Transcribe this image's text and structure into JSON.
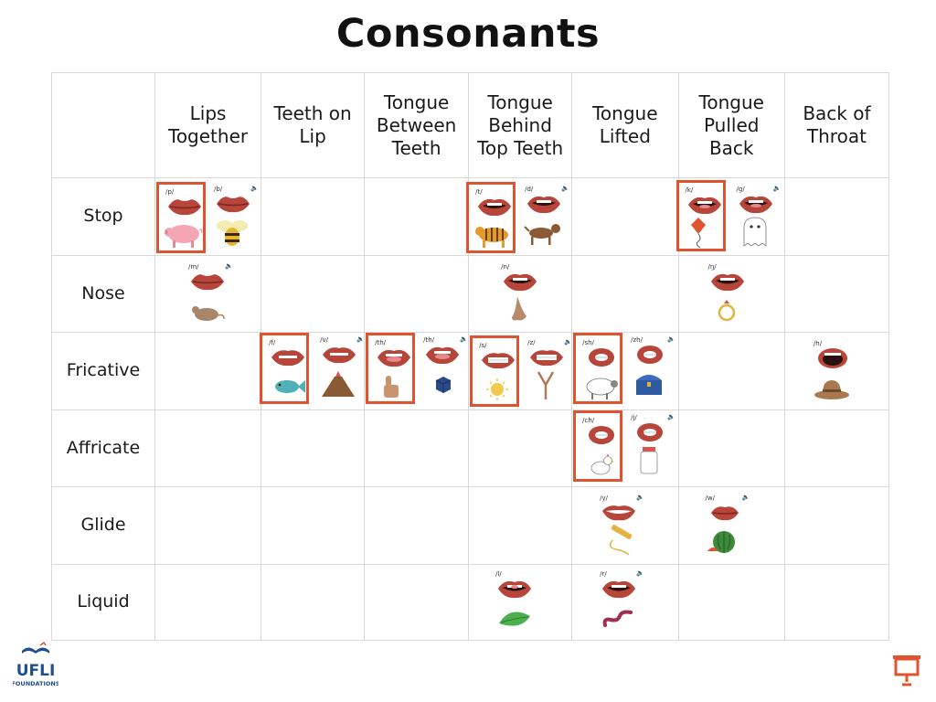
{
  "title": "Consonants",
  "columns": [
    "Lips Together",
    "Teeth on Lip",
    "Tongue Between Teeth",
    "Tongue Behind Top Teeth",
    "Tongue Lifted",
    "Tongue Pulled Back",
    "Back of Throat"
  ],
  "rows": [
    "Stop",
    "Nose",
    "Fricative",
    "Affricate",
    "Glide",
    "Liquid"
  ],
  "sounds": {
    "stop": [
      {
        "label": "/p/",
        "picture": "pig",
        "boxed": true
      },
      {
        "label": "/b/",
        "picture": "bee",
        "boxed": false
      },
      {
        "label": "/t/",
        "picture": "tiger",
        "boxed": true
      },
      {
        "label": "/d/",
        "picture": "dog",
        "boxed": false
      },
      {
        "label": "/k/",
        "picture": "kite",
        "boxed": true
      },
      {
        "label": "/g/",
        "picture": "ghost",
        "boxed": false
      }
    ],
    "nose": [
      {
        "label": "/m/",
        "picture": "mouse"
      },
      {
        "label": "/n/",
        "picture": "nose"
      },
      {
        "label": "/ŋ/",
        "picture": "ring"
      }
    ],
    "fricative": [
      {
        "label": "/f/",
        "picture": "fish",
        "boxed": true
      },
      {
        "label": "/v/",
        "picture": "volcano",
        "boxed": false
      },
      {
        "label": "/th/",
        "picture": "thumb",
        "boxed": true
      },
      {
        "label": "/th/",
        "picture": "this-cube",
        "boxed": false
      },
      {
        "label": "/s/",
        "picture": "sun",
        "boxed": true
      },
      {
        "label": "/z/",
        "picture": "zipper",
        "boxed": false
      },
      {
        "label": "/sh/",
        "picture": "sheep",
        "boxed": true
      },
      {
        "label": "/zh/",
        "picture": "treasure",
        "boxed": false
      },
      {
        "label": "/h/",
        "picture": "hat"
      }
    ],
    "affricate": [
      {
        "label": "/ch/",
        "picture": "chick",
        "boxed": true
      },
      {
        "label": "/j/",
        "picture": "jar",
        "boxed": false
      }
    ],
    "glide": [
      {
        "label": "/y/",
        "picture": "yarn"
      },
      {
        "label": "/w/",
        "picture": "watermelon"
      }
    ],
    "liquid": [
      {
        "label": "/l/",
        "picture": "leaf"
      },
      {
        "label": "/r/",
        "picture": "worm"
      }
    ]
  },
  "speaker_icon": "speaker-icon",
  "logo": {
    "text": "UFLI",
    "subtext": "FOUNDATIONS"
  },
  "accent_color": "#e0532f",
  "lip_color": "#b8453a"
}
